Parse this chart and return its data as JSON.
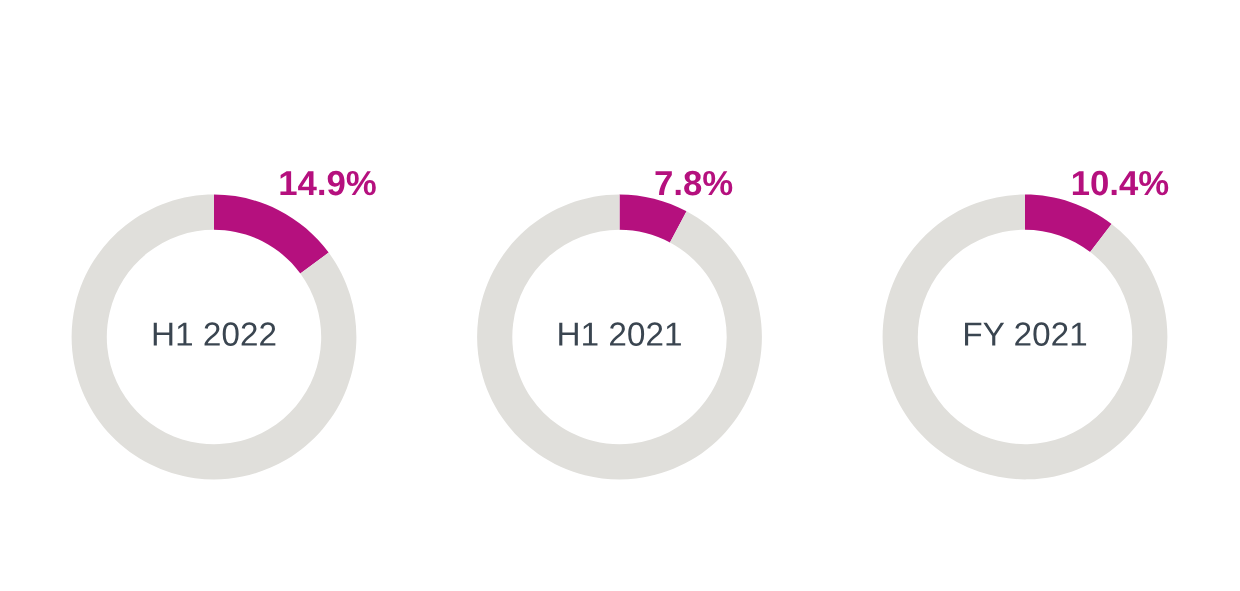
{
  "chart_data": [
    {
      "type": "donut",
      "title": "H1 2022",
      "categories": [
        null,
        null
      ],
      "values": [
        14.9,
        85.1
      ],
      "colors": [
        "#b5107e",
        "#e0dfdb"
      ],
      "value_labels": [
        "14.9%",
        null
      ]
    },
    {
      "type": "donut",
      "title": "H1 2021",
      "categories": [
        null,
        null
      ],
      "values": [
        7.8,
        92.2
      ],
      "colors": [
        "#b5107e",
        "#e0dfdb"
      ],
      "value_labels": [
        "7.8%",
        null
      ]
    },
    {
      "type": "donut",
      "title": "FY 2021",
      "categories": [
        null,
        null
      ],
      "values": [
        10.4,
        89.6
      ],
      "colors": [
        "#b5107e",
        "#e0dfdb"
      ],
      "value_labels": [
        "10.4%",
        null
      ]
    }
  ]
}
